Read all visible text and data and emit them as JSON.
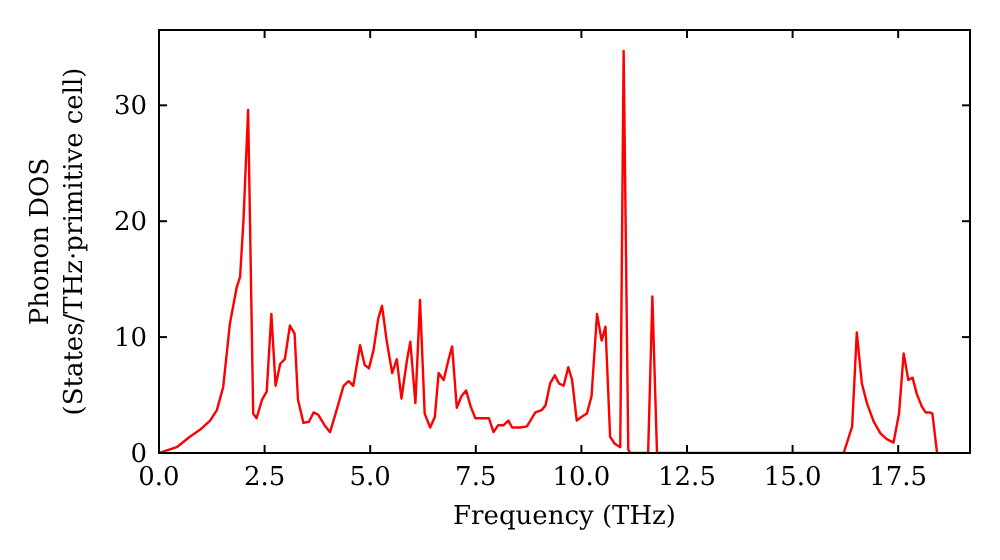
{
  "chart_data": {
    "type": "line",
    "xlabel": "Frequency (THz)",
    "ylabel": "Phonon DOS\n(States/THz·primitive cell)",
    "xlim": [
      0,
      19.2
    ],
    "ylim": [
      0,
      36.5
    ],
    "xticks": [
      {
        "value": 0,
        "label": "0.0"
      },
      {
        "value": 2.5,
        "label": "2.5"
      },
      {
        "value": 5,
        "label": "5.0"
      },
      {
        "value": 7.5,
        "label": "7.5"
      },
      {
        "value": 10,
        "label": "10.0"
      },
      {
        "value": 12.5,
        "label": "12.5"
      },
      {
        "value": 15,
        "label": "15.0"
      },
      {
        "value": 17.5,
        "label": "17.5"
      }
    ],
    "yticks": [
      0,
      10,
      20,
      30
    ],
    "grid": false,
    "marker": "none",
    "line_style": "solid",
    "series": [
      {
        "color": "#ff0000",
        "x": [
          0,
          0.42,
          0.73,
          0.97,
          1.21,
          1.37,
          1.52,
          1.68,
          1.84,
          1.92,
          2.0,
          2.11,
          2.23,
          2.31,
          2.44,
          2.55,
          2.66,
          2.76,
          2.87,
          2.98,
          3.1,
          3.21,
          3.29,
          3.42,
          3.55,
          3.66,
          3.77,
          3.92,
          4.05,
          4.18,
          4.37,
          4.49,
          4.6,
          4.76,
          4.87,
          4.97,
          5.08,
          5.19,
          5.28,
          5.39,
          5.52,
          5.63,
          5.74,
          5.87,
          5.95,
          6.07,
          6.18,
          6.29,
          6.42,
          6.53,
          6.62,
          6.74,
          6.85,
          6.94,
          7.05,
          7.16,
          7.27,
          7.38,
          7.49,
          7.68,
          7.81,
          7.92,
          8.03,
          8.16,
          8.27,
          8.36,
          8.55,
          8.71,
          8.91,
          9.06,
          9.15,
          9.26,
          9.37,
          9.47,
          9.58,
          9.69,
          9.78,
          9.89,
          10.0,
          10.13,
          10.24,
          10.37,
          10.48,
          10.57,
          10.68,
          10.79,
          10.92,
          11.0,
          11.11,
          11.16,
          11.58,
          11.68,
          11.79,
          16.21,
          16.41,
          16.52,
          16.64,
          16.76,
          16.92,
          17.08,
          17.23,
          17.39,
          17.52,
          17.63,
          17.74,
          17.84,
          17.94,
          18.06,
          18.15,
          18.26,
          18.31,
          18.42
        ],
        "values": [
          0,
          0.5,
          1.4,
          2.0,
          2.8,
          3.7,
          5.7,
          11.2,
          14.3,
          15.2,
          20.1,
          29.6,
          3.4,
          3.0,
          4.6,
          5.3,
          12.0,
          5.8,
          7.7,
          8.1,
          11.0,
          10.3,
          4.6,
          2.6,
          2.7,
          3.5,
          3.3,
          2.4,
          1.8,
          3.4,
          5.8,
          6.2,
          5.8,
          9.3,
          7.6,
          7.3,
          8.9,
          11.6,
          12.7,
          9.7,
          6.9,
          8.1,
          4.7,
          8.0,
          9.6,
          4.3,
          13.2,
          3.4,
          2.2,
          3.1,
          6.9,
          6.3,
          8.0,
          9.2,
          3.9,
          4.9,
          5.4,
          4.0,
          3.0,
          3.0,
          3.0,
          1.8,
          2.4,
          2.4,
          2.8,
          2.2,
          2.2,
          2.3,
          3.5,
          3.7,
          4.1,
          6.0,
          6.7,
          6.0,
          5.8,
          7.4,
          6.3,
          2.8,
          3.1,
          3.4,
          4.9,
          12.0,
          9.7,
          10.9,
          1.4,
          0.8,
          0.5,
          34.7,
          0.3,
          0,
          0,
          13.5,
          0,
          0,
          2.3,
          10.4,
          6.0,
          4.3,
          2.7,
          1.7,
          1.2,
          0.9,
          3.4,
          8.6,
          6.3,
          6.5,
          5.1,
          4.0,
          3.5,
          3.5,
          3.4,
          0
        ]
      }
    ]
  }
}
